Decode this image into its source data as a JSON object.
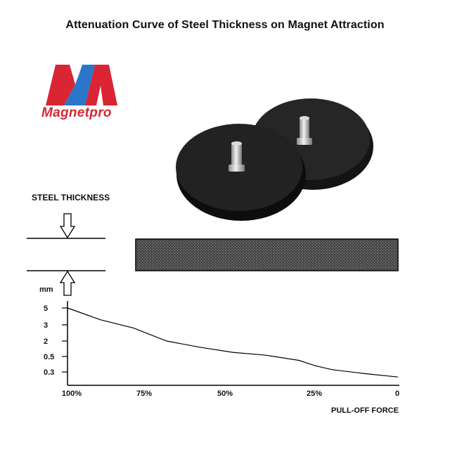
{
  "title": "Attenuation Curve of Steel Thickness on Magnet Attraction",
  "brand": {
    "logo_icon": "magnetpro-m-logo-icon",
    "name": "Magnetpro",
    "colors": {
      "red": "#d92534",
      "blue": "#1f6fc8"
    }
  },
  "product_image": "two-black-rubber-coated-pot-magnets-with-threaded-studs",
  "steel_label": "STEEL THICKNESS",
  "chart_data": {
    "type": "line",
    "title": "Attenuation Curve of Steel Thickness on Magnet Attraction",
    "xlabel": "PULL-OFF FORCE",
    "ylabel": "mm",
    "x_ticks": [
      "100%",
      "75%",
      "50%",
      "25%",
      "0"
    ],
    "y_ticks": [
      "5",
      "3",
      "2",
      "0.5",
      "0.3"
    ],
    "series": [
      {
        "x": [
          100,
          90,
          80,
          75,
          70,
          60,
          50,
          40,
          30,
          25,
          20,
          10,
          0
        ],
        "y": [
          5,
          3.6,
          2.8,
          2.4,
          2,
          1.4,
          0.9,
          0.62,
          0.45,
          0.38,
          0.33,
          0.28,
          0.24
        ]
      }
    ],
    "grid": false,
    "legend": "none"
  }
}
